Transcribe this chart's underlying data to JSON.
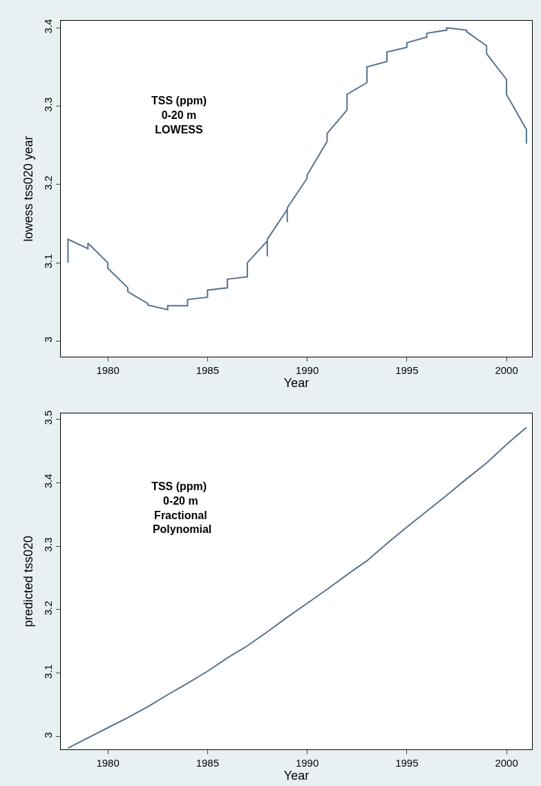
{
  "chart_data": [
    {
      "type": "line",
      "xlabel": "Year",
      "ylabel": "lowess tss020 year",
      "annotations": [
        "TSS (ppm)\n0-20 m\nLOWESS"
      ],
      "grid": false,
      "legend": false,
      "marker": "none",
      "line_style": "solid",
      "xlim": [
        1977.64,
        2001.28
      ],
      "xticks": [
        1980,
        1985,
        1990,
        1995,
        2000
      ],
      "ylim": [
        2.98,
        3.409
      ],
      "yticks": [
        3,
        3.1,
        3.2,
        3.3,
        3.4
      ],
      "series": [
        {
          "color": "#56728e",
          "x": [
            1978,
            1978,
            1979,
            1979,
            1980,
            1980,
            1981,
            1981,
            1982,
            1982,
            1983,
            1983,
            1984,
            1984,
            1985,
            1985,
            1986,
            1986,
            1987,
            1987,
            1988,
            1988,
            1988,
            1989,
            1989,
            1989,
            1990,
            1990,
            1991,
            1991,
            1992,
            1992,
            1993,
            1993,
            1994,
            1994,
            1995,
            1995,
            1996,
            1996,
            1997,
            1997,
            1998,
            1998,
            1999,
            1999,
            2000,
            2000,
            2001,
            2001
          ],
          "values": [
            3.1,
            3.13,
            3.118,
            3.125,
            3.1,
            3.093,
            3.068,
            3.063,
            3.048,
            3.046,
            3.04,
            3.045,
            3.045,
            3.053,
            3.056,
            3.065,
            3.068,
            3.079,
            3.082,
            3.1,
            3.128,
            3.108,
            3.13,
            3.168,
            3.152,
            3.17,
            3.208,
            3.212,
            3.255,
            3.265,
            3.295,
            3.315,
            3.33,
            3.35,
            3.357,
            3.369,
            3.375,
            3.381,
            3.388,
            3.393,
            3.397,
            3.4,
            3.397,
            3.395,
            3.377,
            3.367,
            3.334,
            3.315,
            3.27,
            3.252
          ]
        }
      ]
    },
    {
      "type": "line",
      "xlabel": "Year",
      "ylabel": "predicted tss020",
      "annotations": [
        "TSS (ppm)\n 0-20 m\n Fractional\n  Polynomial"
      ],
      "grid": false,
      "legend": false,
      "marker": "none",
      "line_style": "solid",
      "xlim": [
        1977.64,
        2001.28
      ],
      "xticks": [
        1980,
        1985,
        1990,
        1995,
        2000
      ],
      "ylim": [
        2.98,
        3.509
      ],
      "yticks": [
        3,
        3.1,
        3.2,
        3.3,
        3.4,
        3.5
      ],
      "series": [
        {
          "color": "#56728e",
          "x": [
            1978,
            1979,
            1980,
            1981,
            1982,
            1983,
            1984,
            1985,
            1986,
            1987,
            1988,
            1989,
            1990,
            1991,
            1992,
            1993,
            1994,
            1995,
            1996,
            1997,
            1998,
            1999,
            2000,
            2001
          ],
          "values": [
            2.982,
            2.998,
            3.014,
            3.03,
            3.047,
            3.066,
            3.084,
            3.103,
            3.124,
            3.143,
            3.165,
            3.188,
            3.21,
            3.232,
            3.255,
            3.277,
            3.304,
            3.33,
            3.355,
            3.38,
            3.406,
            3.431,
            3.46,
            3.487
          ]
        }
      ]
    }
  ]
}
